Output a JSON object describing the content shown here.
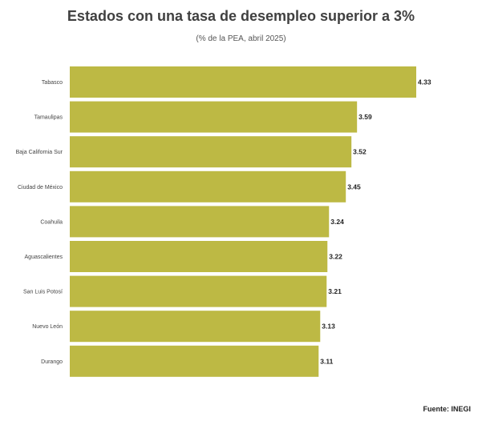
{
  "chart_data": {
    "type": "bar",
    "orientation": "horizontal",
    "title": "Estados con una tasa de desempleo superior a 3%",
    "subtitle": "(% de la PEA, abril 2025)",
    "categories": [
      "Tabasco",
      "Tamaulipas",
      "Baja California Sur",
      "Ciudad de México",
      "Coahuila",
      "Aguascalientes",
      "San Luis Potosí",
      "Nuevo León",
      "Durango"
    ],
    "values": [
      4.33,
      3.59,
      3.52,
      3.45,
      3.24,
      3.22,
      3.21,
      3.13,
      3.11
    ],
    "value_labels": [
      "4.33",
      "3.59",
      "3.52",
      "3.45",
      "3.24",
      "3.22",
      "3.21",
      "3.13",
      "3.11"
    ],
    "xlim": [
      0,
      4.33
    ],
    "grid": false,
    "bar_color": "#BDB944",
    "source": "Fuente: INEGI"
  }
}
